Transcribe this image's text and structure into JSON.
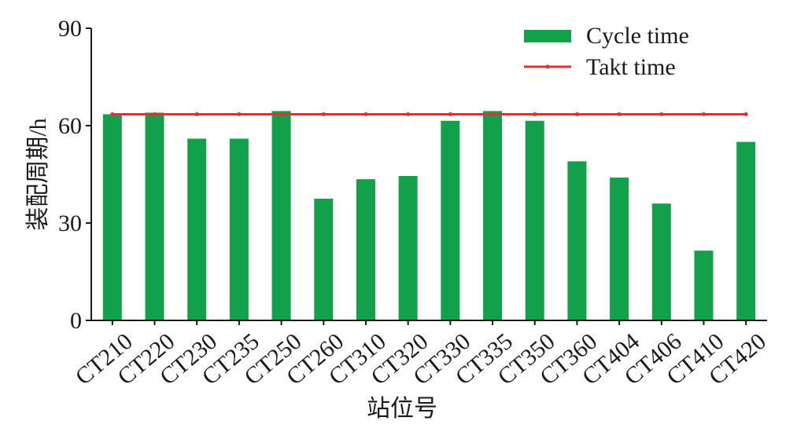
{
  "chart_data": {
    "type": "bar",
    "xlabel": "站位号",
    "ylabel": "装配周期/h",
    "ylim": [
      0,
      90
    ],
    "yticks": [
      "0",
      "30",
      "60",
      "90"
    ],
    "grid": false,
    "legend_position": "top-right",
    "categories": [
      "CT210",
      "CT220",
      "CT230",
      "CT235",
      "CT250",
      "CT260",
      "CT310",
      "CT320",
      "CT330",
      "CT335",
      "CT350",
      "CT360",
      "CT404",
      "CT406",
      "CT410",
      "CT420"
    ],
    "series": [
      {
        "name": "Cycle time",
        "kind": "bar",
        "color": "#13a04a",
        "values": [
          63.5,
          64,
          56,
          56,
          64.5,
          37.5,
          43.5,
          44.5,
          61.5,
          64.5,
          61.5,
          49,
          44,
          36,
          21.5,
          55
        ]
      },
      {
        "name": "Takt time",
        "kind": "line",
        "color": "#f02b2b",
        "values": [
          63.5,
          63.5,
          63.5,
          63.5,
          63.5,
          63.5,
          63.5,
          63.5,
          63.5,
          63.5,
          63.5,
          63.5,
          63.5,
          63.5,
          63.5,
          63.5
        ]
      }
    ]
  }
}
